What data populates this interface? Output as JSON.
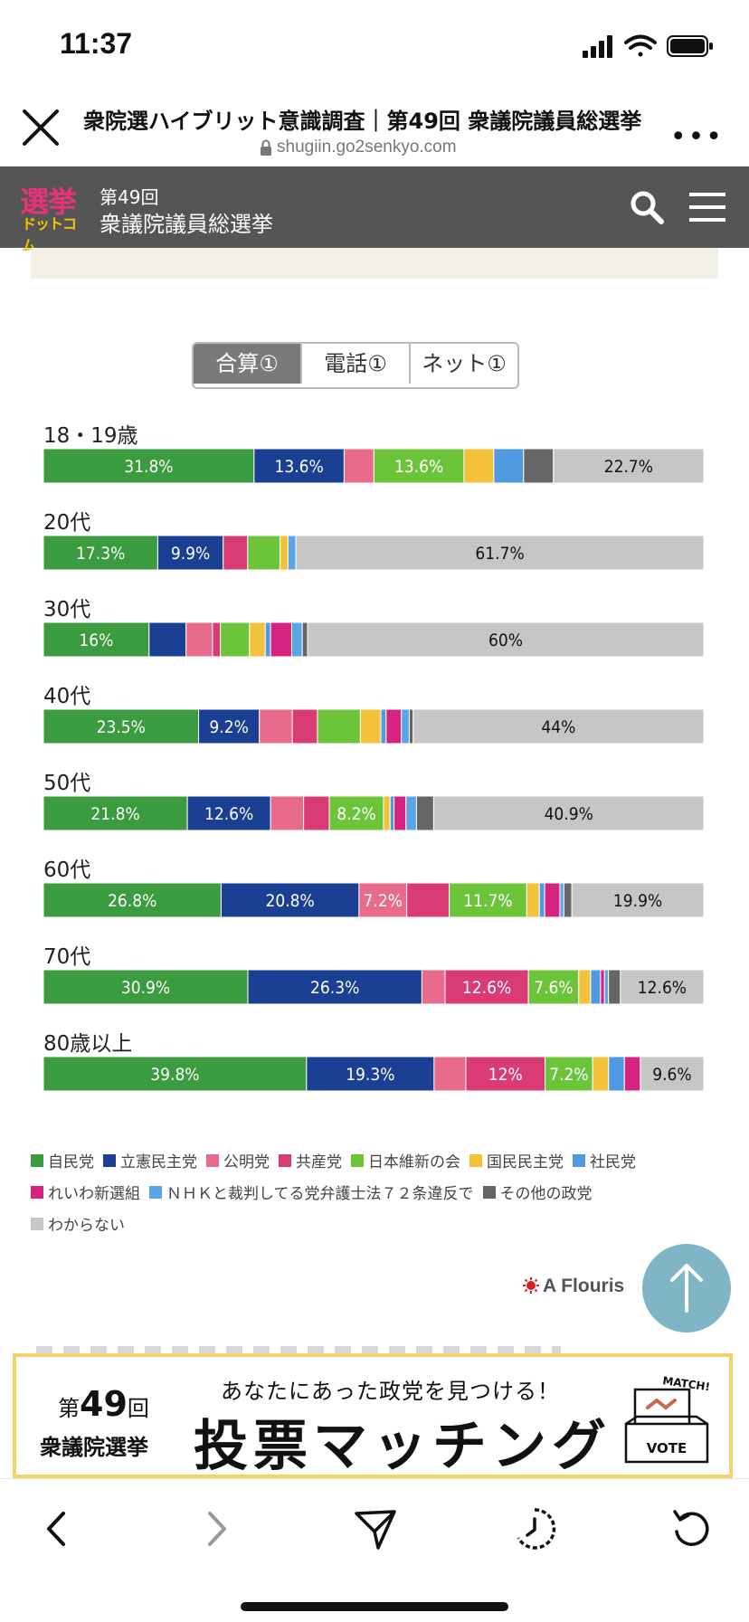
{
  "status_bar": {
    "time": "11:37"
  },
  "browser": {
    "title": "衆院選ハイブリット意識調査｜第49回 衆議院議員総選挙",
    "url": "shugiin.go2senkyo.com"
  },
  "site_header": {
    "logo_top": "選挙",
    "logo_bottom": "ドットコム",
    "election_number": "第49回",
    "election_name": "衆議院議員総選挙"
  },
  "tabs": [
    {
      "label": "合算①",
      "active": true
    },
    {
      "label": "電話①",
      "active": false
    },
    {
      "label": "ネット①",
      "active": false
    }
  ],
  "colors": {
    "自民党": "#3b9b3f",
    "立憲民主党": "#1b3f93",
    "公明党": "#e86b8c",
    "共産党": "#d93c74",
    "日本維新の会": "#6cc43a",
    "国民民主党": "#f3c13a",
    "社民党": "#4f9ae0",
    "れいわ新選組": "#d5237f",
    "ＮＨＫと裁判してる党弁護士法７２条違反で": "#5aa5e8",
    "その他の政党": "#666666",
    "わからない": "#c6c6c6"
  },
  "chart_data": {
    "type": "stacked-bar-horizontal",
    "parties": [
      "自民党",
      "立憲民主党",
      "公明党",
      "共産党",
      "日本維新の会",
      "国民民主党",
      "社民党",
      "れいわ新選組",
      "ＮＨＫと裁判してる党弁護士法７２条違反で",
      "その他の政党",
      "わからない"
    ],
    "rows": [
      {
        "label": "18・19歳",
        "segments": [
          {
            "party": "自民党",
            "value": 31.8,
            "label": "31.8%"
          },
          {
            "party": "立憲民主党",
            "value": 13.6,
            "label": "13.6%"
          },
          {
            "party": "公明党",
            "value": 4.5,
            "label": ""
          },
          {
            "party": "日本維新の会",
            "value": 13.6,
            "label": "13.6%"
          },
          {
            "party": "国民民主党",
            "value": 4.5,
            "label": ""
          },
          {
            "party": "社民党",
            "value": 4.5,
            "label": ""
          },
          {
            "party": "その他の政党",
            "value": 4.5,
            "label": ""
          },
          {
            "party": "わからない",
            "value": 22.7,
            "label": "22.7%"
          }
        ]
      },
      {
        "label": "20代",
        "segments": [
          {
            "party": "自民党",
            "value": 17.3,
            "label": "17.3%"
          },
          {
            "party": "立憲民主党",
            "value": 9.9,
            "label": "9.9%"
          },
          {
            "party": "共産党",
            "value": 3.7,
            "label": ""
          },
          {
            "party": "日本維新の会",
            "value": 4.9,
            "label": ""
          },
          {
            "party": "国民民主党",
            "value": 1.2,
            "label": ""
          },
          {
            "party": "ＮＨＫと裁判してる党弁護士法７２条違反で",
            "value": 1.2,
            "label": ""
          },
          {
            "party": "わからない",
            "value": 61.7,
            "label": "61.7%"
          }
        ]
      },
      {
        "label": "30代",
        "segments": [
          {
            "party": "自民党",
            "value": 16,
            "label": "16%"
          },
          {
            "party": "立憲民主党",
            "value": 5.6,
            "label": ""
          },
          {
            "party": "公明党",
            "value": 4,
            "label": ""
          },
          {
            "party": "共産党",
            "value": 1.2,
            "label": ""
          },
          {
            "party": "日本維新の会",
            "value": 4.4,
            "label": ""
          },
          {
            "party": "国民民主党",
            "value": 2.4,
            "label": ""
          },
          {
            "party": "社民党",
            "value": 0.8,
            "label": ""
          },
          {
            "party": "れいわ新選組",
            "value": 3.2,
            "label": ""
          },
          {
            "party": "ＮＨＫと裁判してる党弁護士法７２条違反で",
            "value": 1.6,
            "label": ""
          },
          {
            "party": "その他の政党",
            "value": 0.8,
            "label": ""
          },
          {
            "party": "わからない",
            "value": 60,
            "label": "60%"
          }
        ]
      },
      {
        "label": "40代",
        "segments": [
          {
            "party": "自民党",
            "value": 23.5,
            "label": "23.5%"
          },
          {
            "party": "立憲民主党",
            "value": 9.2,
            "label": "9.2%"
          },
          {
            "party": "公明党",
            "value": 5,
            "label": ""
          },
          {
            "party": "共産党",
            "value": 3.8,
            "label": ""
          },
          {
            "party": "日本維新の会",
            "value": 6.5,
            "label": ""
          },
          {
            "party": "国民民主党",
            "value": 3.1,
            "label": ""
          },
          {
            "party": "社民党",
            "value": 0.8,
            "label": ""
          },
          {
            "party": "れいわ新選組",
            "value": 2.3,
            "label": ""
          },
          {
            "party": "ＮＨＫと裁判してる党弁護士法７２条違反で",
            "value": 1.2,
            "label": ""
          },
          {
            "party": "その他の政党",
            "value": 0.6,
            "label": ""
          },
          {
            "party": "わからない",
            "value": 44,
            "label": "44%"
          }
        ]
      },
      {
        "label": "50代",
        "segments": [
          {
            "party": "自民党",
            "value": 21.8,
            "label": "21.8%"
          },
          {
            "party": "立憲民主党",
            "value": 12.6,
            "label": "12.6%"
          },
          {
            "party": "公明党",
            "value": 5,
            "label": ""
          },
          {
            "party": "共産党",
            "value": 3.9,
            "label": ""
          },
          {
            "party": "日本維新の会",
            "value": 8.2,
            "label": "8.2%"
          },
          {
            "party": "国民民主党",
            "value": 1,
            "label": ""
          },
          {
            "party": "社民党",
            "value": 0.6,
            "label": ""
          },
          {
            "party": "れいわ新選組",
            "value": 1.8,
            "label": ""
          },
          {
            "party": "ＮＨＫと裁判してる党弁護士法７２条違反で",
            "value": 1.6,
            "label": ""
          },
          {
            "party": "その他の政党",
            "value": 2.6,
            "label": ""
          },
          {
            "party": "わからない",
            "value": 40.9,
            "label": "40.9%"
          }
        ]
      },
      {
        "label": "60代",
        "segments": [
          {
            "party": "自民党",
            "value": 26.8,
            "label": "26.8%"
          },
          {
            "party": "立憲民主党",
            "value": 20.8,
            "label": "20.8%"
          },
          {
            "party": "公明党",
            "value": 7.2,
            "label": "7.2%"
          },
          {
            "party": "共産党",
            "value": 6.4,
            "label": ""
          },
          {
            "party": "日本維新の会",
            "value": 11.7,
            "label": "11.7%"
          },
          {
            "party": "国民民主党",
            "value": 1.9,
            "label": ""
          },
          {
            "party": "社民党",
            "value": 0.8,
            "label": ""
          },
          {
            "party": "れいわ新選組",
            "value": 2.3,
            "label": ""
          },
          {
            "party": "ＮＨＫと裁判してる党弁護士法７２条違反で",
            "value": 0.6,
            "label": ""
          },
          {
            "party": "その他の政党",
            "value": 1.2,
            "label": ""
          },
          {
            "party": "わからない",
            "value": 19.9,
            "label": "19.9%"
          }
        ]
      },
      {
        "label": "70代",
        "segments": [
          {
            "party": "自民党",
            "value": 30.9,
            "label": "30.9%"
          },
          {
            "party": "立憲民主党",
            "value": 26.3,
            "label": "26.3%"
          },
          {
            "party": "公明党",
            "value": 3.5,
            "label": ""
          },
          {
            "party": "共産党",
            "value": 12.6,
            "label": "12.6%"
          },
          {
            "party": "日本維新の会",
            "value": 7.6,
            "label": "7.6%"
          },
          {
            "party": "国民民主党",
            "value": 1.8,
            "label": ""
          },
          {
            "party": "社民党",
            "value": 1.5,
            "label": ""
          },
          {
            "party": "れいわ新選組",
            "value": 0.6,
            "label": ""
          },
          {
            "party": "ＮＨＫと裁判してる党弁護士法７２条違反で",
            "value": 0.6,
            "label": ""
          },
          {
            "party": "その他の政党",
            "value": 1.8,
            "label": ""
          },
          {
            "party": "わからない",
            "value": 12.6,
            "label": "12.6%"
          }
        ]
      },
      {
        "label": "80歳以上",
        "segments": [
          {
            "party": "自民党",
            "value": 39.8,
            "label": "39.8%"
          },
          {
            "party": "立憲民主党",
            "value": 19.3,
            "label": "19.3%"
          },
          {
            "party": "公明党",
            "value": 4.8,
            "label": ""
          },
          {
            "party": "共産党",
            "value": 12,
            "label": "12%"
          },
          {
            "party": "日本維新の会",
            "value": 7.2,
            "label": "7.2%"
          },
          {
            "party": "国民民主党",
            "value": 2.4,
            "label": ""
          },
          {
            "party": "社民党",
            "value": 2.4,
            "label": ""
          },
          {
            "party": "れいわ新選組",
            "value": 2.4,
            "label": ""
          },
          {
            "party": "わからない",
            "value": 9.6,
            "label": "9.6%"
          }
        ]
      }
    ],
    "legend": [
      "自民党",
      "立憲民主党",
      "公明党",
      "共産党",
      "日本維新の会",
      "国民民主党",
      "社民党",
      "れいわ新選組",
      "ＮＨＫと裁判してる党弁護士法７２条違反で",
      "その他の政党",
      "わからない"
    ],
    "legend_position": "bottom"
  },
  "ad": {
    "brand": "A Flouris"
  },
  "banner": {
    "line1_prefix": "第",
    "line1_number": "49",
    "line1_suffix": "回",
    "line2": "衆議院選挙",
    "subtitle": "あなたにあった政党を見つける！",
    "title": "投票マッチング",
    "match_tag": "MATCH!",
    "vote_label": "VOTE"
  },
  "icons": {
    "close": "close-icon",
    "lock": "lock-icon",
    "search": "search-icon",
    "menu": "hamburger-icon",
    "scroll_top": "arrow-up-icon",
    "back": "chevron-left-icon",
    "forward": "chevron-right-icon",
    "share": "send-icon",
    "history": "history-icon",
    "reload": "reload-icon"
  }
}
